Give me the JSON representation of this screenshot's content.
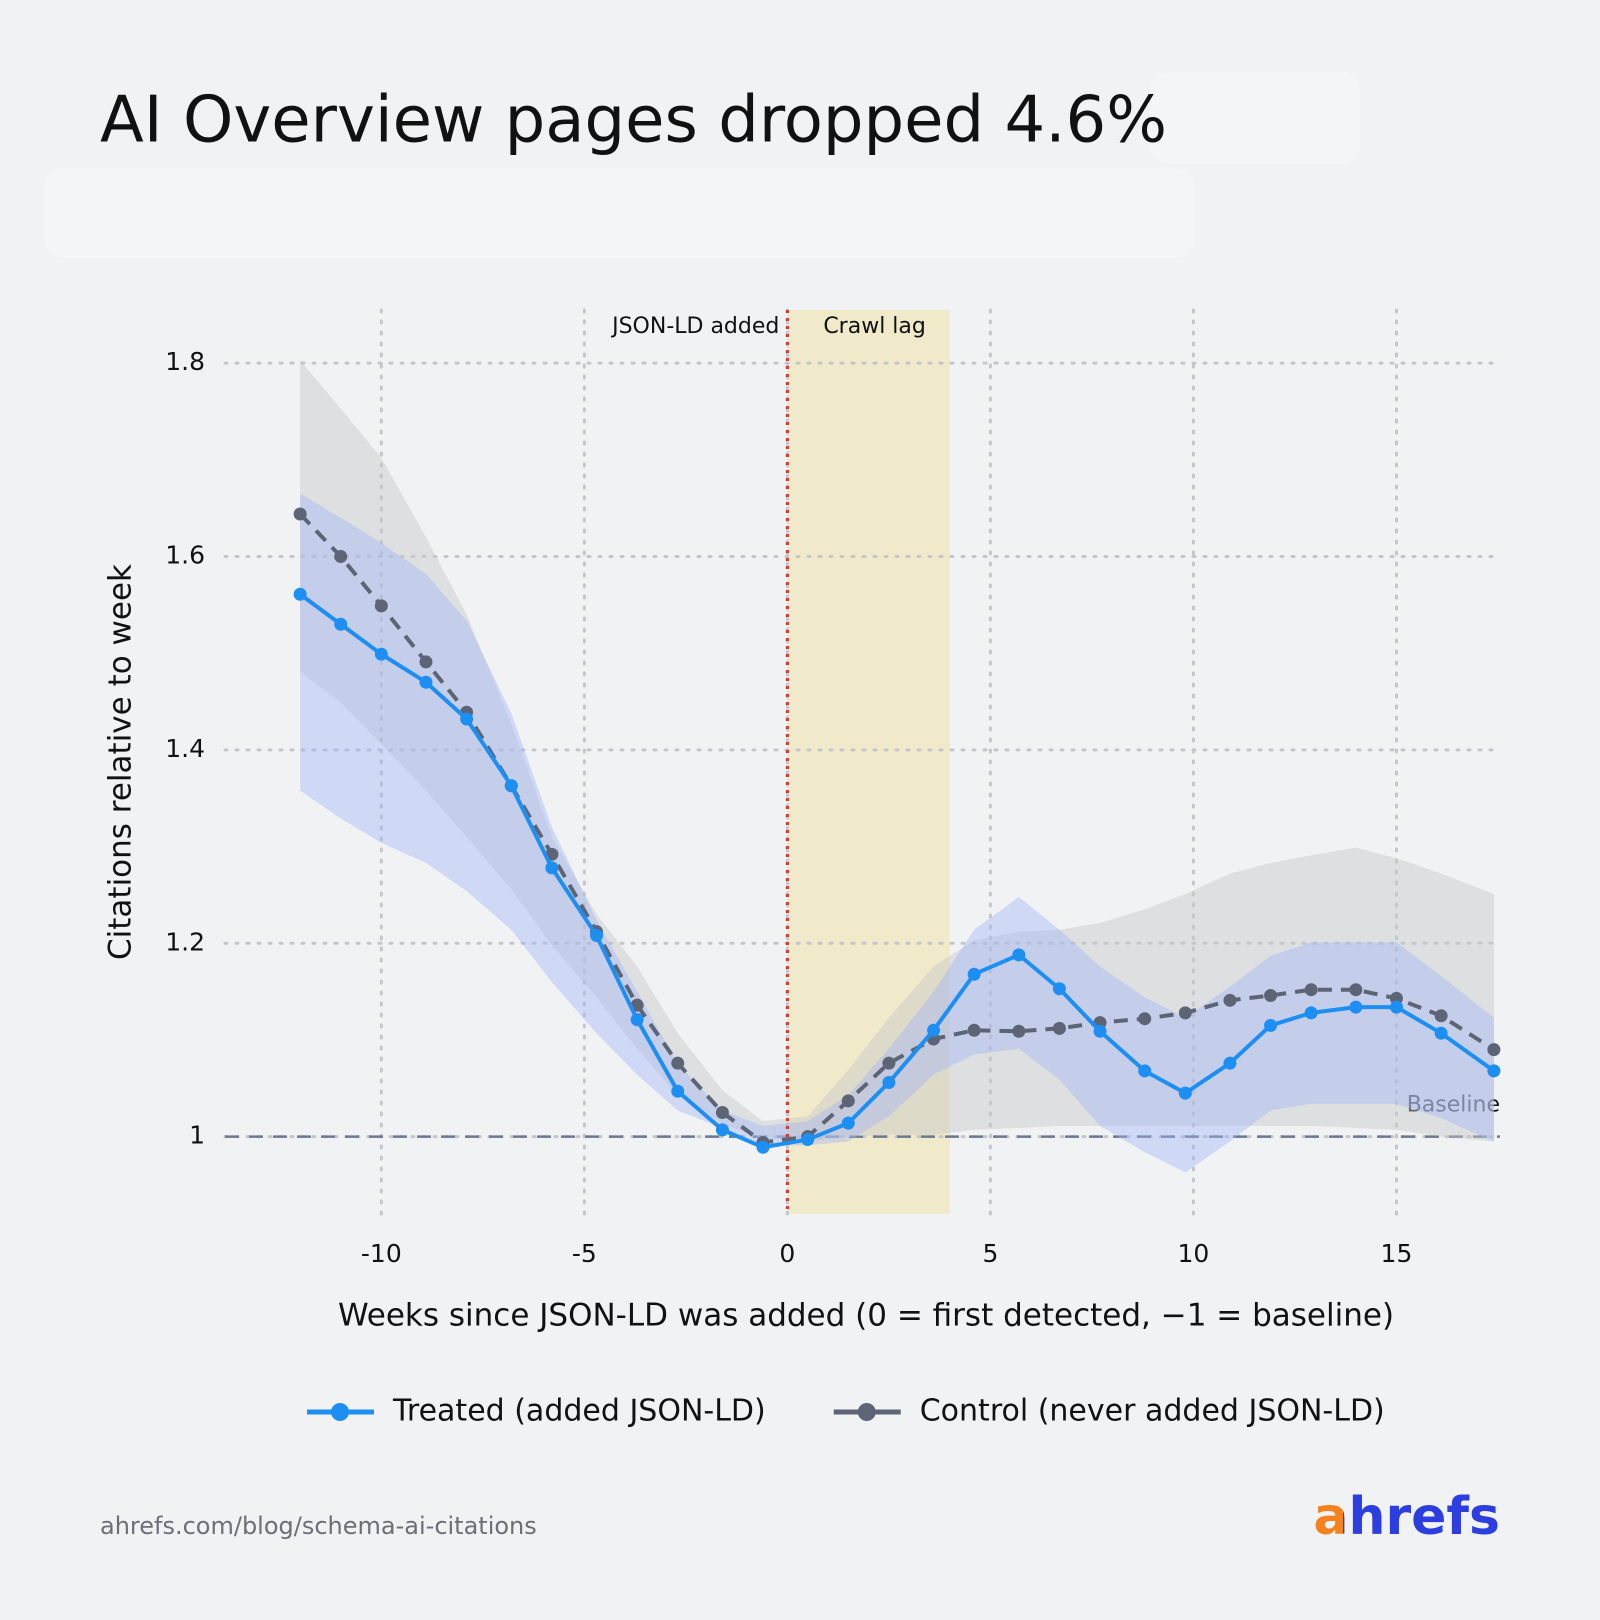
{
  "chart_data": {
    "type": "line",
    "title": "AI Overview pages dropped 4.6%",
    "x_label": "Weeks since JSON-LD was added (0 = first detected, −1 = baseline)",
    "y_label": "Citations relative to week",
    "x": [
      -12,
      -11,
      -10,
      -8.9,
      -7.9,
      -6.8,
      -5.8,
      -4.7,
      -3.7,
      -2.7,
      -1.6,
      -0.6,
      0.5,
      1.5,
      2.5,
      3.6,
      4.6,
      5.7,
      6.7,
      7.7,
      8.8,
      9.8,
      10.9,
      11.9,
      12.9,
      14,
      15,
      16.1,
      17.4
    ],
    "series": [
      {
        "name": "Treated (added JSON-LD)",
        "color": "#1e8ff2",
        "dashed": false,
        "band_color": "rgba(160,182,245,0.42)",
        "values": [
          1.561,
          1.53,
          1.499,
          1.47,
          1.432,
          1.363,
          1.278,
          1.208,
          1.121,
          1.047,
          1.007,
          0.989,
          0.997,
          1.014,
          1.056,
          1.11,
          1.168,
          1.188,
          1.153,
          1.109,
          1.068,
          1.045,
          1.076,
          1.115,
          1.128,
          1.134,
          1.134,
          1.107,
          1.068
        ],
        "lower": [
          1.358,
          1.329,
          1.304,
          1.283,
          1.254,
          1.214,
          1.16,
          1.107,
          1.064,
          1.027,
          1.009,
          0.991,
          0.991,
          0.995,
          1.021,
          1.064,
          1.085,
          1.091,
          1.059,
          1.011,
          0.984,
          0.963,
          0.995,
          1.027,
          1.034,
          1.034,
          1.034,
          1.019,
          0.995
        ],
        "upper": [
          1.665,
          1.64,
          1.614,
          1.582,
          1.534,
          1.438,
          1.32,
          1.224,
          1.15,
          1.075,
          1.027,
          1.011,
          1.016,
          1.043,
          1.091,
          1.15,
          1.214,
          1.248,
          1.214,
          1.176,
          1.144,
          1.123,
          1.155,
          1.187,
          1.201,
          1.201,
          1.201,
          1.166,
          1.123
        ]
      },
      {
        "name": "Control (never added JSON-LD)",
        "color": "#5d6475",
        "dashed": true,
        "band_color": "rgba(200,200,200,0.45)",
        "values": [
          1.644,
          1.6,
          1.549,
          1.491,
          1.439,
          1.363,
          1.292,
          1.212,
          1.136,
          1.076,
          1.025,
          0.994,
          1.0,
          1.037,
          1.076,
          1.101,
          1.11,
          1.109,
          1.112,
          1.118,
          1.122,
          1.128,
          1.141,
          1.146,
          1.152,
          1.152,
          1.143,
          1.125,
          1.09
        ],
        "lower": [
          1.481,
          1.449,
          1.406,
          1.358,
          1.31,
          1.256,
          1.198,
          1.144,
          1.091,
          1.043,
          1.013,
          0.998,
          0.995,
          1.0,
          1.002,
          1.002,
          1.007,
          1.009,
          1.011,
          1.011,
          1.011,
          1.011,
          1.011,
          1.011,
          1.011,
          1.009,
          1.007,
          1.0,
          0.995
        ],
        "upper": [
          1.803,
          1.753,
          1.702,
          1.62,
          1.54,
          1.427,
          1.31,
          1.23,
          1.176,
          1.107,
          1.048,
          1.016,
          1.021,
          1.069,
          1.123,
          1.176,
          1.203,
          1.212,
          1.214,
          1.221,
          1.235,
          1.251,
          1.272,
          1.283,
          1.291,
          1.299,
          1.288,
          1.272,
          1.251
        ]
      }
    ],
    "xlim": [
      -13.85,
      17.55
    ],
    "ylim": [
      0.92,
      1.855
    ],
    "xticks": [
      -10,
      -5,
      0,
      5,
      10,
      15
    ],
    "yticks": [
      1,
      1.2,
      1.4,
      1.6,
      1.8
    ],
    "grid": true,
    "vline": {
      "x": 0,
      "label": "JSON-LD added",
      "color": "#e0322b"
    },
    "span": {
      "x": [
        0,
        4
      ],
      "label": "Crawl lag",
      "color": "rgba(240,228,180,0.65)"
    },
    "hline": {
      "y": 1,
      "label": "Baseline",
      "color": "#6b7890"
    },
    "source": "ahrefs.com/blog/schema-ai-citations",
    "brand": "ahrefs"
  }
}
